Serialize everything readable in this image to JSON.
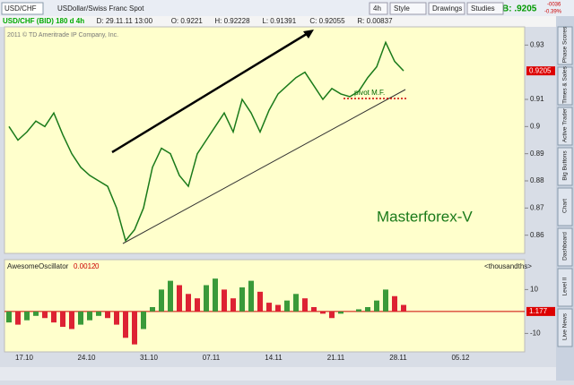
{
  "toolbar": {
    "symbol": "USD/CHF",
    "description": "USDollar/Swiss Franc Spot",
    "buttons": [
      "4h",
      "Style",
      "Drawings",
      "Studies"
    ],
    "bid": "B: .9205",
    "change": "-0036",
    "change_pct": "-0.39%"
  },
  "info_bar": [
    "USD/CHF (BID) 180 d 4h",
    "D: 29.11.11 13:00",
    "O: 0.9221",
    "H: 0.92228",
    "L: 0.91391",
    "C: 0.92055",
    "R: 0.00837"
  ],
  "copyright": "2011 © TD Ameritrade IP Company, Inc.",
  "sidebar_tabs": [
    "Phase Scores",
    "Times & Sales",
    "Active Trader",
    "Big Buttons",
    "Chart",
    "Dashboard",
    "Level II",
    "Live News"
  ],
  "date_axis": [
    "17.10",
    "24.10",
    "31.10",
    "07.11",
    "14.11",
    "21.11",
    "28.11",
    "05.12"
  ],
  "chart_data": [
    {
      "type": "line",
      "series": [
        {
          "name": "USD/CHF",
          "color": "#1a7a1a",
          "values": [
            0.9,
            0.895,
            0.898,
            0.902,
            0.9,
            0.905,
            0.897,
            0.89,
            0.885,
            0.882,
            0.88,
            0.878,
            0.87,
            0.858,
            0.862,
            0.87,
            0.885,
            0.892,
            0.89,
            0.882,
            0.878,
            0.89,
            0.895,
            0.9,
            0.905,
            0.898,
            0.91,
            0.905,
            0.898,
            0.906,
            0.912,
            0.915,
            0.918,
            0.92,
            0.915,
            0.91,
            0.914,
            0.912,
            0.911,
            0.913,
            0.918,
            0.922,
            0.931,
            0.924,
            0.9205
          ]
        }
      ],
      "ylim": [
        0.8533,
        0.9367
      ],
      "yticks": [
        0.86,
        0.87,
        0.88,
        0.89,
        0.9,
        0.91,
        0.93
      ],
      "last_label": "0.9205",
      "annotations": [
        "pivot M.F.",
        "Masterforex-V"
      ]
    },
    {
      "type": "bar",
      "title": "AwesomeOscillator",
      "header_values": [
        "0.0012",
        "0"
      ],
      "unit_label": "<thousandths>",
      "last_label": "1.177",
      "series": [
        {
          "name": "AwesomeOscillator",
          "values": [
            -5,
            -6,
            -4,
            -2,
            -3,
            -5,
            -7,
            -8,
            -6,
            -4,
            -2,
            -3,
            -6,
            -12,
            -15,
            -8,
            2,
            10,
            14,
            12,
            8,
            6,
            12,
            15,
            10,
            6,
            11,
            14,
            9,
            4,
            3,
            5,
            8,
            6,
            2,
            -1,
            -3,
            -1,
            0,
            1,
            2,
            5,
            10,
            7,
            3
          ]
        }
      ],
      "ylim": [
        -18,
        22
      ],
      "yticks": [
        -10,
        10
      ]
    }
  ]
}
